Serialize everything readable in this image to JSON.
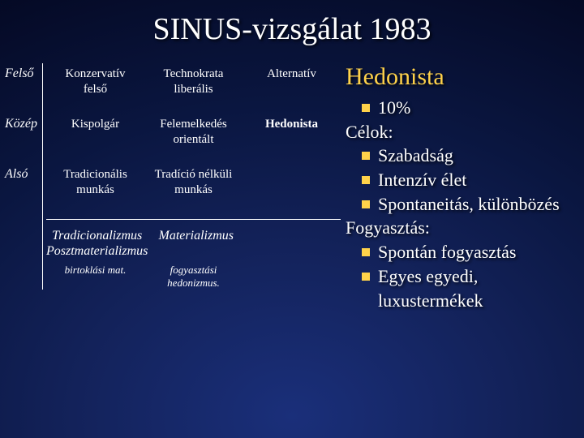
{
  "title": "SINUS-vizsgálat 1983",
  "colors": {
    "accent": "#ffd24a",
    "text": "#ffffff"
  },
  "table": {
    "row_labels": [
      "Felső",
      "Közép",
      "Alsó"
    ],
    "rows": [
      [
        {
          "line1": "Konzervatív",
          "line2": "felső"
        },
        {
          "line1": "Technokrata",
          "line2": "liberális"
        },
        {
          "line1": "Alternatív",
          "line2": ""
        }
      ],
      [
        {
          "line1": "Kispolgár",
          "line2": ""
        },
        {
          "line1": "Felemelkedés",
          "line2": "orientált"
        },
        {
          "line1": "Hedonista",
          "line2": "",
          "bold": true
        }
      ],
      [
        {
          "line1": "Tradicionális",
          "line2": "munkás"
        },
        {
          "line1": "Tradíció nélküli",
          "line2": "munkás"
        },
        {
          "line1": "",
          "line2": ""
        }
      ]
    ],
    "footer": [
      {
        "line1": "Tradicionalizmus",
        "line2": "Posztmaterializmus"
      },
      {
        "line1": "Materializmus",
        "line2": ""
      },
      {
        "line1": "",
        "line2": ""
      }
    ],
    "subfooter": [
      "birtoklási mat.",
      "fogyasztási hedonizmus.",
      ""
    ]
  },
  "panel": {
    "heading": "Hedonista",
    "items": [
      {
        "type": "bullet",
        "text": "10%"
      },
      {
        "type": "label",
        "text": "Célok:"
      },
      {
        "type": "bullet",
        "text": "Szabadság"
      },
      {
        "type": "bullet",
        "text": "Intenzív élet"
      },
      {
        "type": "bullet",
        "text": "Spontaneitás, különbözés"
      },
      {
        "type": "label",
        "text": "Fogyasztás:"
      },
      {
        "type": "bullet",
        "text": "Spontán fogyasztás"
      },
      {
        "type": "bullet",
        "text": "Egyes egyedi, luxustermékek"
      }
    ]
  }
}
